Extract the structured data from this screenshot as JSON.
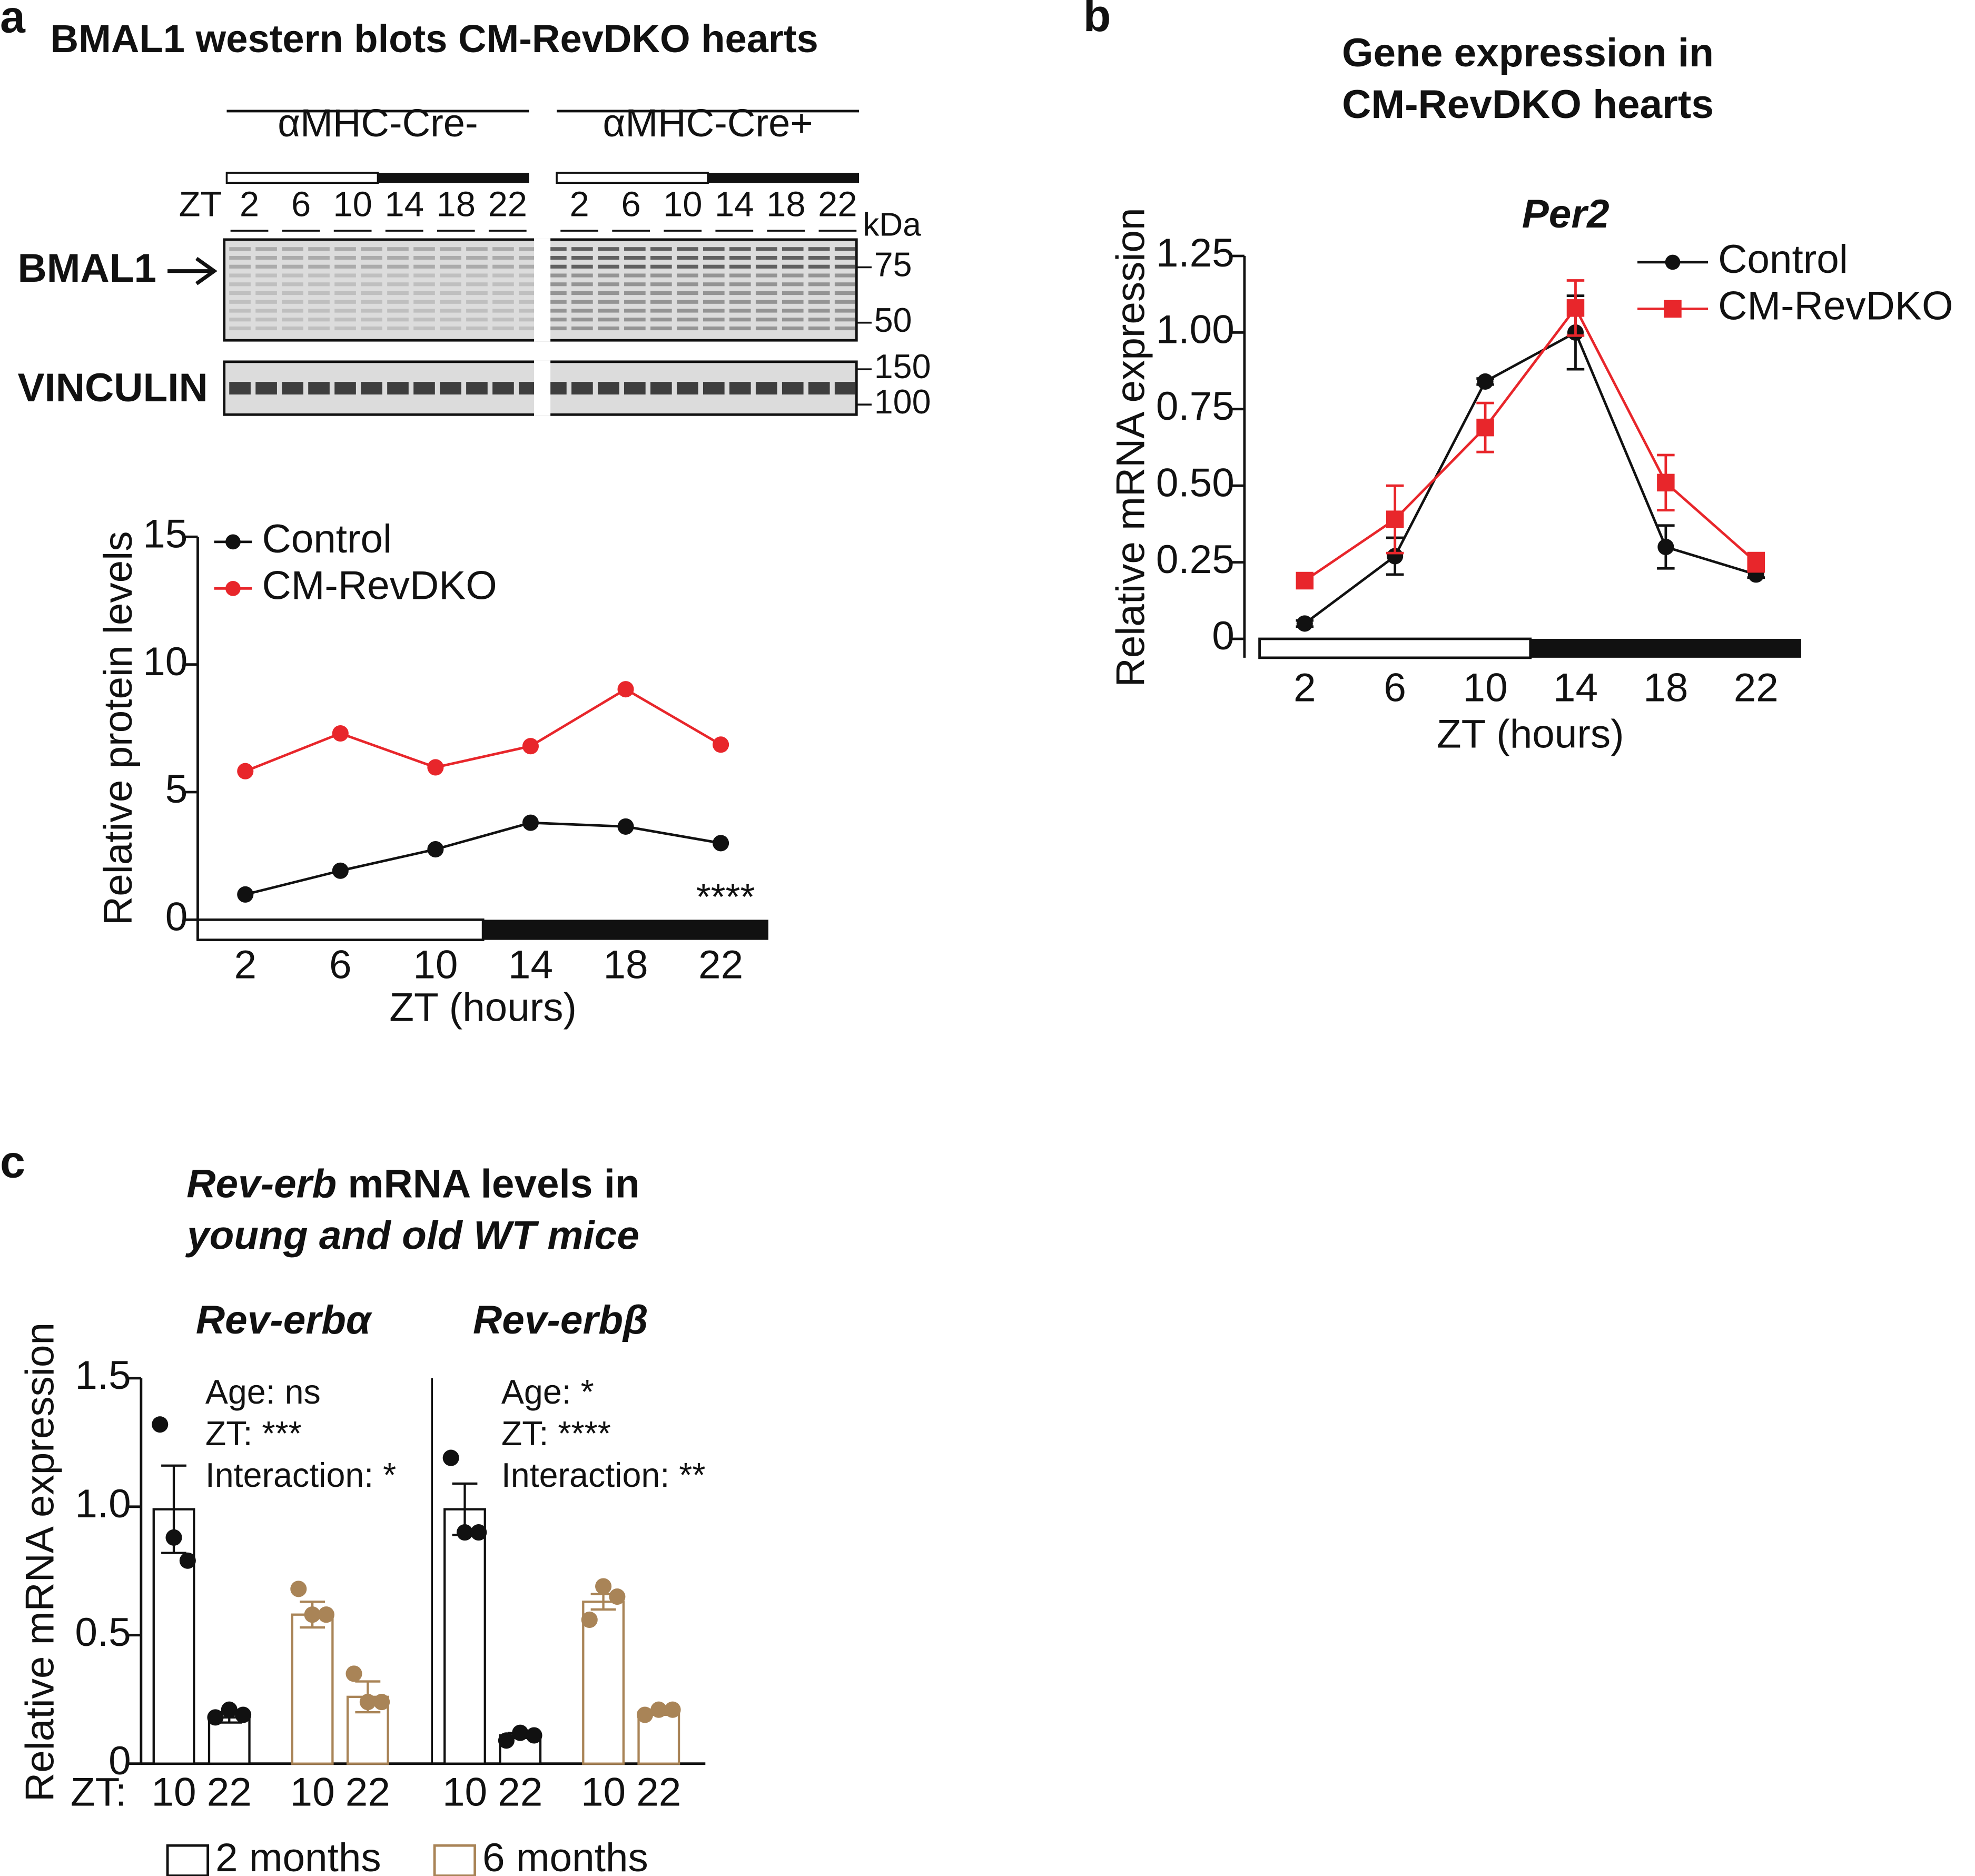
{
  "blot": {
    "panel_label": "a",
    "title": "BMAL1 western blots CM-RevDKO hearts",
    "groups": [
      "αMHC-Cre-",
      "αMHC-Cre+"
    ],
    "zt_label": "ZT",
    "lanes": [
      "2",
      "6",
      "10",
      "14",
      "18",
      "22"
    ],
    "unit": "kDa",
    "bands": [
      {
        "name": "BMAL1",
        "markers": [
          "75",
          "50"
        ]
      },
      {
        "name": "VINCULIN",
        "markers": [
          "150",
          "100"
        ]
      }
    ]
  },
  "chart_data": [
    {
      "type": "line",
      "x": [
        2,
        6,
        10,
        14,
        18,
        22
      ],
      "xlim": [
        0,
        24
      ],
      "xticks": [
        2,
        6,
        10,
        14,
        18,
        22
      ],
      "ylim": [
        0,
        15
      ],
      "yticks": [
        0,
        5,
        10,
        15
      ],
      "dark_start": 12,
      "xlabel": "ZT (hours)",
      "ylabel": "Relative protein levels",
      "annotation": "****",
      "grid": false,
      "series": [
        {
          "name": "Control",
          "color": "#111111",
          "marker": "circle",
          "values": [
            0.99,
            1.92,
            2.76,
            3.8,
            3.65,
            3.0
          ]
        },
        {
          "name": "CM-RevDKO",
          "color": "#e8262b",
          "marker": "circle",
          "values": [
            5.82,
            7.3,
            5.97,
            6.8,
            9.03,
            6.86
          ]
        }
      ]
    },
    {
      "type": "line",
      "panel_label": "b",
      "title": [
        "Gene expression in",
        "CM-RevDKO hearts"
      ],
      "subtitle": "Per2",
      "x": [
        2,
        6,
        10,
        14,
        18,
        22
      ],
      "xlim": [
        0,
        24
      ],
      "xticks": [
        2,
        6,
        10,
        14,
        18,
        22
      ],
      "ylim": [
        0,
        1.25
      ],
      "yticks": [
        0,
        0.25,
        {
          "value": 0.5,
          "label": "0.50"
        },
        0.75,
        {
          "value": 1,
          "label": "1.00"
        },
        1.25
      ],
      "dark_start": 12,
      "xlabel": "ZT (hours)",
      "ylabel": "Relative mRNA expression",
      "grid": false,
      "series": [
        {
          "name": "Control",
          "color": "#111111",
          "marker": "circle",
          "values": [
            0.05,
            0.27,
            0.84,
            1.0,
            0.3,
            0.21
          ],
          "errors": [
            0.01,
            0.06,
            0.01,
            0.12,
            0.07,
            0.01
          ]
        },
        {
          "name": "CM-RevDKO",
          "color": "#e8262b",
          "marker": "square",
          "values": [
            0.19,
            0.39,
            0.69,
            1.08,
            0.51,
            0.25
          ],
          "errors": [
            0.01,
            0.11,
            0.08,
            0.09,
            0.09,
            0.03
          ]
        }
      ]
    },
    {
      "type": "dotbar",
      "panel_label": "c",
      "title": [
        [
          "Rev-erb",
          " mRNA levels in"
        ],
        [
          "young and old WT mice"
        ]
      ],
      "ylabel": "Relative mRNA expression",
      "ylim": [
        0,
        1.5
      ],
      "yticks": [
        0,
        0.5,
        {
          "value": 1,
          "label": "1.0"
        },
        1.5
      ],
      "x_prefix": "ZT:",
      "categories": [
        "10",
        "22"
      ],
      "series": [
        {
          "name": "2 months",
          "color": "#111111"
        },
        {
          "name": "6 months",
          "color": "#a98457"
        }
      ],
      "groups": [
        {
          "name": "Rev-erbα",
          "stats": [
            "Age: ns",
            "ZT: ***",
            "Interaction: *"
          ],
          "values": [
            [
              0.99,
              0.18
            ],
            [
              0.58,
              0.26
            ]
          ],
          "errors": [
            [
              0.17,
              0.02
            ],
            [
              0.05,
              0.06
            ]
          ],
          "points": [
            [
              [
                1.32,
                0.88,
                0.79
              ],
              [
                0.18,
                0.21,
                0.19
              ]
            ],
            [
              [
                0.68,
                0.58,
                0.58
              ],
              [
                0.35,
                0.24,
                0.24
              ]
            ]
          ]
        },
        {
          "name": "Rev-erbβ",
          "stats": [
            "Age: *",
            "ZT: ****",
            "Interaction: **"
          ],
          "values": [
            [
              0.99,
              0.11
            ],
            [
              0.63,
              0.2
            ]
          ],
          "errors": [
            [
              0.1,
              0.01
            ],
            [
              0.03,
              0.01
            ]
          ],
          "points": [
            [
              [
                1.19,
                0.9,
                0.9
              ],
              [
                0.09,
                0.12,
                0.11
              ]
            ],
            [
              [
                0.56,
                0.69,
                0.65
              ],
              [
                0.19,
                0.21,
                0.21
              ]
            ]
          ]
        }
      ]
    }
  ]
}
